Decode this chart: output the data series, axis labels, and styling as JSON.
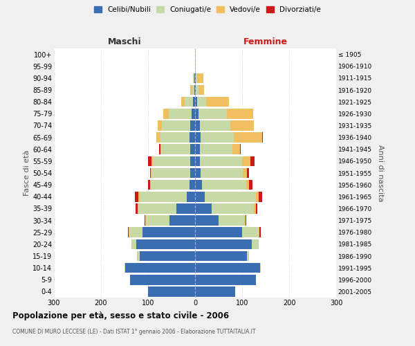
{
  "age_groups": [
    "0-4",
    "5-9",
    "10-14",
    "15-19",
    "20-24",
    "25-29",
    "30-34",
    "35-39",
    "40-44",
    "45-49",
    "50-54",
    "55-59",
    "60-64",
    "65-69",
    "70-74",
    "75-79",
    "80-84",
    "85-89",
    "90-94",
    "95-99",
    "100+"
  ],
  "birth_years": [
    "2001-2005",
    "1996-2000",
    "1991-1995",
    "1986-1990",
    "1981-1985",
    "1976-1980",
    "1971-1975",
    "1966-1970",
    "1961-1965",
    "1956-1960",
    "1951-1955",
    "1946-1950",
    "1941-1945",
    "1936-1940",
    "1931-1935",
    "1926-1930",
    "1921-1925",
    "1916-1920",
    "1911-1915",
    "1906-1910",
    "≤ 1905"
  ],
  "maschi_celibi": [
    100,
    138,
    148,
    118,
    125,
    112,
    55,
    40,
    18,
    12,
    10,
    10,
    10,
    12,
    10,
    8,
    4,
    2,
    1,
    0,
    0
  ],
  "maschi_coniugati": [
    0,
    0,
    2,
    5,
    10,
    28,
    50,
    80,
    100,
    82,
    82,
    80,
    62,
    62,
    60,
    48,
    18,
    4,
    2,
    0,
    0
  ],
  "maschi_vedovi": [
    0,
    0,
    0,
    0,
    0,
    1,
    1,
    2,
    2,
    2,
    2,
    2,
    2,
    8,
    10,
    12,
    8,
    4,
    2,
    0,
    0
  ],
  "maschi_divorziati": [
    0,
    0,
    0,
    0,
    0,
    2,
    2,
    4,
    8,
    4,
    2,
    8,
    2,
    0,
    0,
    0,
    0,
    0,
    0,
    0,
    0
  ],
  "femmine_celibi": [
    85,
    130,
    138,
    110,
    120,
    100,
    50,
    35,
    20,
    14,
    12,
    10,
    10,
    12,
    10,
    8,
    4,
    2,
    1,
    0,
    0
  ],
  "femmine_coniugati": [
    0,
    0,
    2,
    5,
    15,
    35,
    55,
    90,
    110,
    95,
    90,
    90,
    70,
    70,
    65,
    60,
    20,
    5,
    4,
    0,
    0
  ],
  "femmine_vedovi": [
    0,
    0,
    0,
    0,
    1,
    2,
    2,
    4,
    5,
    5,
    8,
    18,
    15,
    60,
    50,
    55,
    48,
    12,
    12,
    2,
    1
  ],
  "femmine_divorziati": [
    0,
    0,
    0,
    0,
    0,
    2,
    2,
    4,
    8,
    8,
    4,
    8,
    2,
    2,
    0,
    0,
    0,
    0,
    0,
    0,
    0
  ],
  "colors": {
    "celibi": "#3b6db3",
    "coniugati": "#c8d9a8",
    "vedovi": "#f0c060",
    "divorziati": "#cc1a1a"
  },
  "xlim": 300,
  "title": "Popolazione per età, sesso e stato civile - 2006",
  "subtitle": "COMUNE DI MURO LECCESE (LE) - Dati ISTAT 1° gennaio 2006 - Elaborazione TUTTAITALIA.IT",
  "ylabel_left": "Fasce di età",
  "ylabel_right": "Anni di nascita",
  "xlabel_left": "Maschi",
  "xlabel_right": "Femmine",
  "legend_labels": [
    "Celibi/Nubili",
    "Coniugati/e",
    "Vedovi/e",
    "Divorziati/e"
  ],
  "bg_color": "#f0f0f0",
  "plot_bg": "#ffffff"
}
